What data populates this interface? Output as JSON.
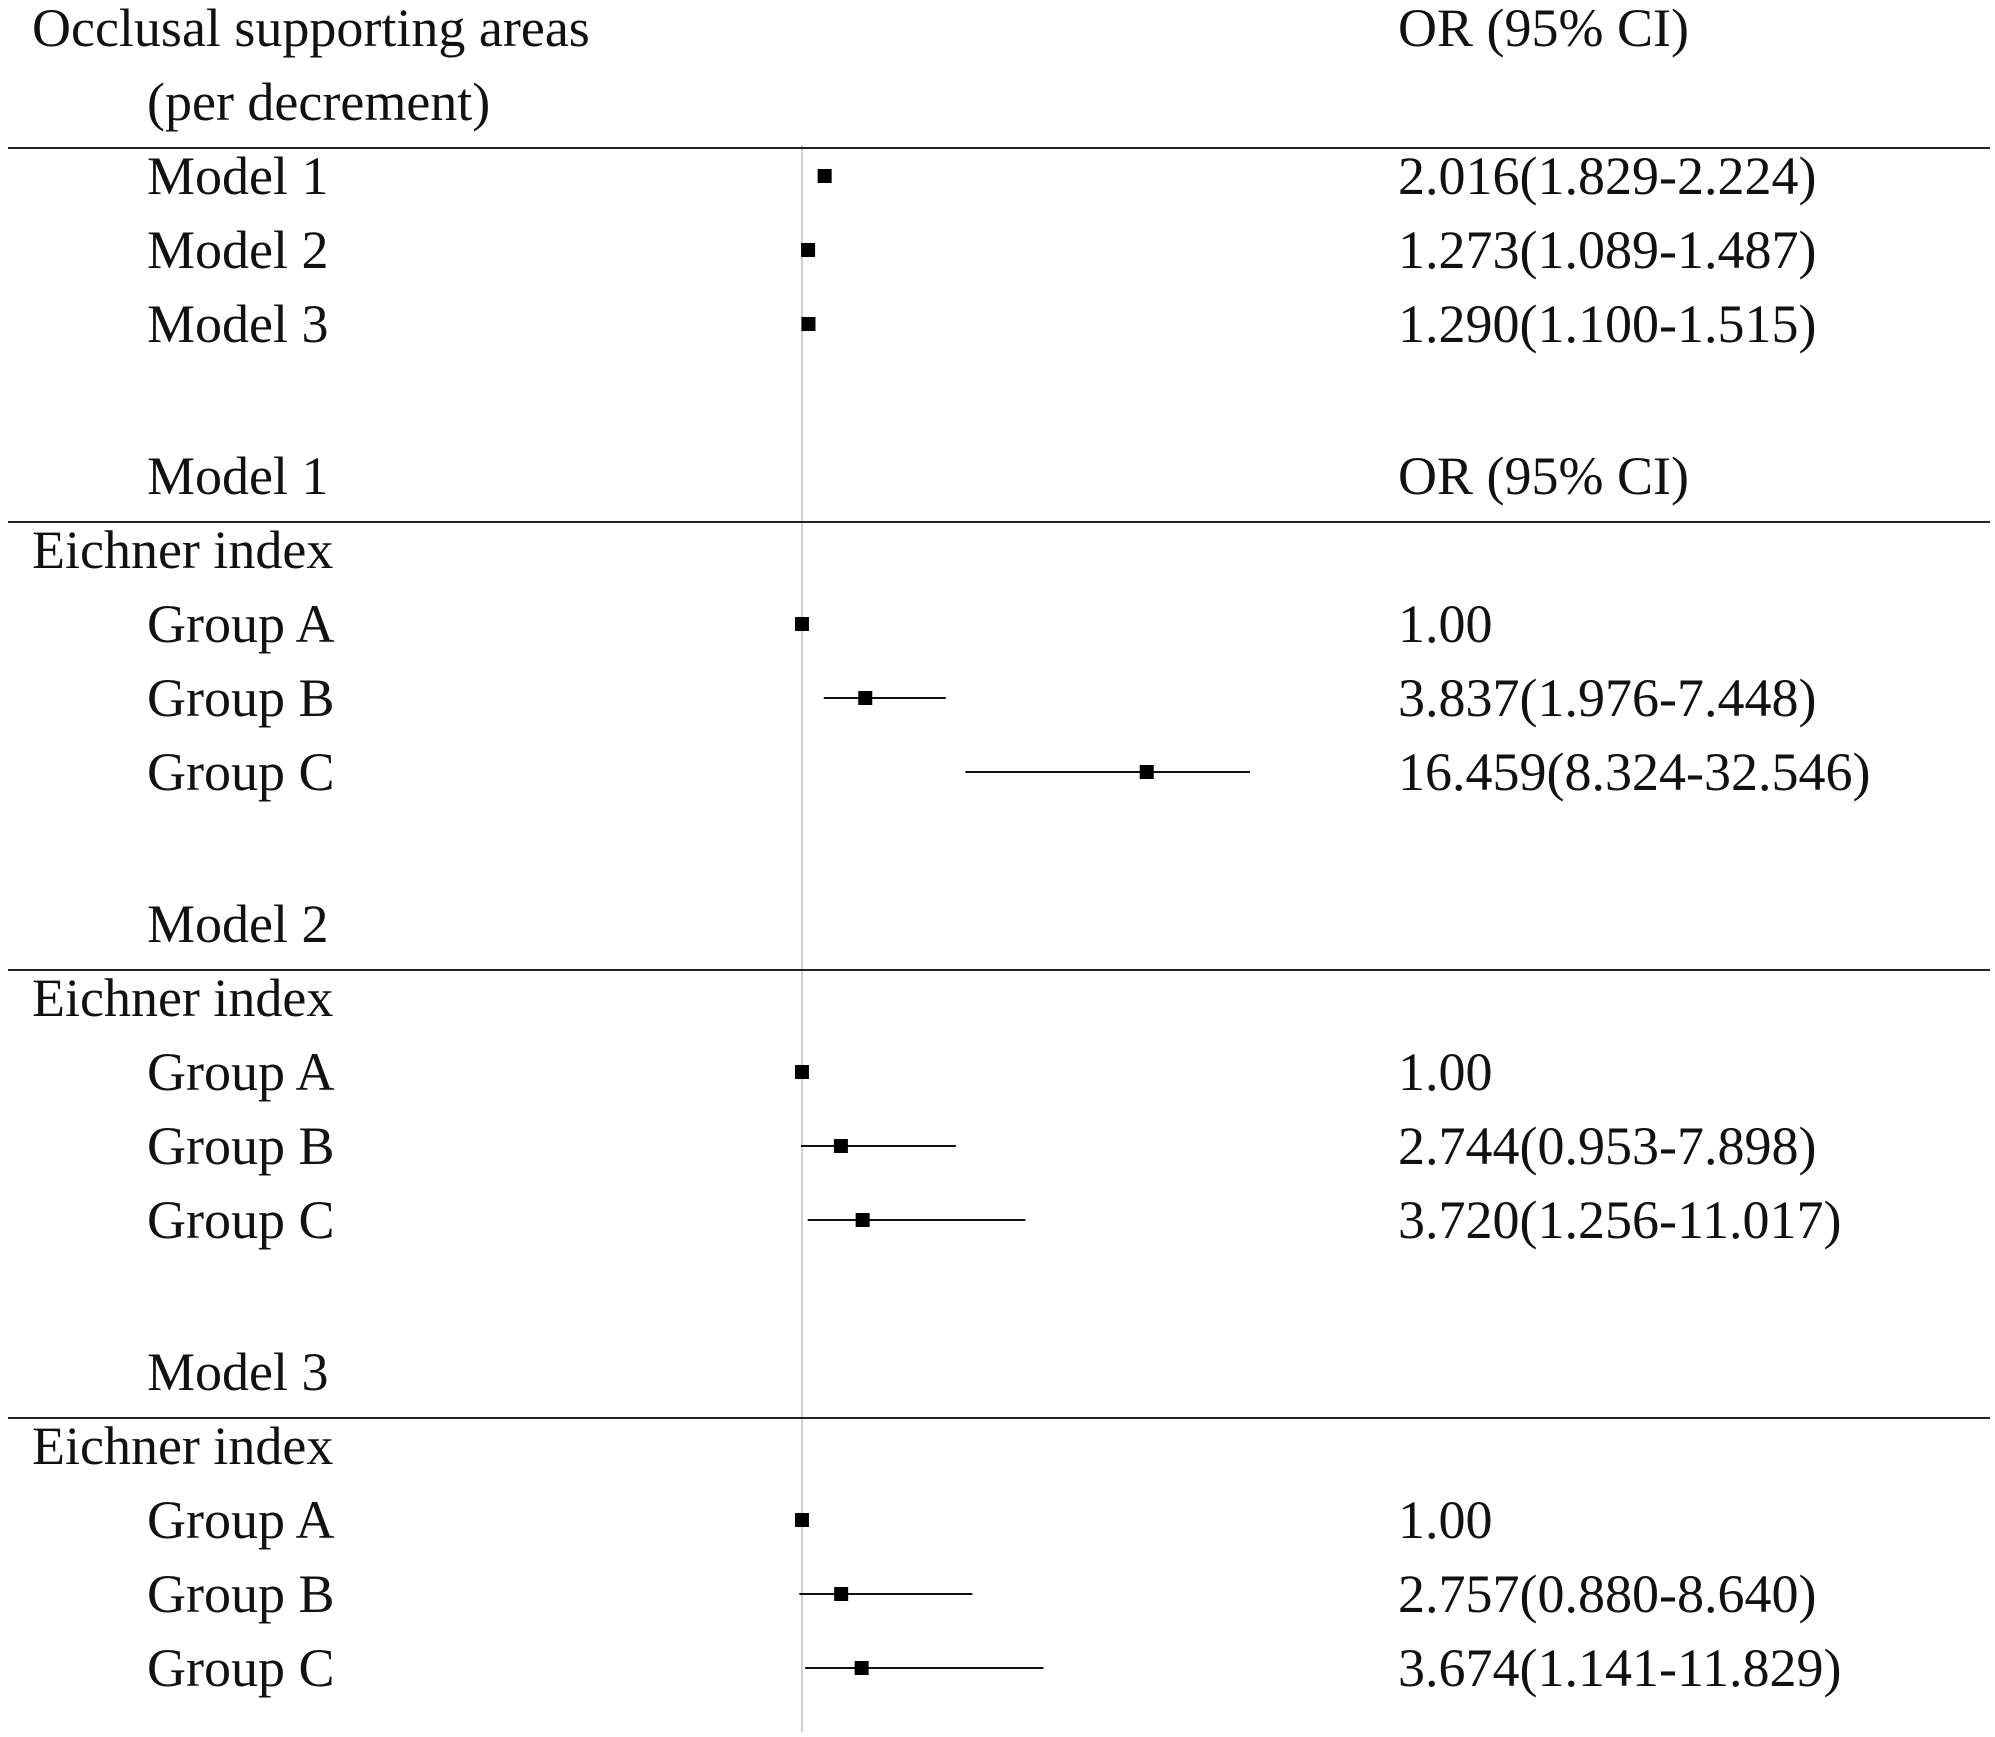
{
  "chart_data": {
    "type": "forest",
    "reference_line": 1,
    "sections": [
      {
        "title": [
          "Occlusal supporting areas",
          "(per decrement)"
        ],
        "header_right": "OR (95% CI)",
        "group_label": "",
        "rows": [
          {
            "label": "Model 1",
            "or": 2.016,
            "lo": 1.829,
            "hi": 2.224,
            "text": "2.016(1.829-2.224)"
          },
          {
            "label": "Model 2",
            "or": 1.273,
            "lo": 1.089,
            "hi": 1.487,
            "text": "1.273(1.089-1.487)"
          },
          {
            "label": "Model 3",
            "or": 1.29,
            "lo": 1.1,
            "hi": 1.515,
            "text": "1.290(1.100-1.515)"
          }
        ]
      },
      {
        "title": [
          "Model 1"
        ],
        "header_right": "OR (95% CI)",
        "group_label": "Eichner index",
        "rows": [
          {
            "label": "Group A",
            "or": 1.0,
            "lo": null,
            "hi": null,
            "text": "1.00"
          },
          {
            "label": "Group B",
            "or": 3.837,
            "lo": 1.976,
            "hi": 7.448,
            "text": "3.837(1.976-7.448)"
          },
          {
            "label": "Group C",
            "or": 16.459,
            "lo": 8.324,
            "hi": 32.546,
            "text": "16.459(8.324-32.546)"
          }
        ]
      },
      {
        "title": [
          "Model 2"
        ],
        "header_right": "",
        "group_label": "Eichner index",
        "rows": [
          {
            "label": "Group A",
            "or": 1.0,
            "lo": null,
            "hi": null,
            "text": "1.00"
          },
          {
            "label": "Group B",
            "or": 2.744,
            "lo": 0.953,
            "hi": 7.898,
            "text": "2.744(0.953-7.898)"
          },
          {
            "label": "Group C",
            "or": 3.72,
            "lo": 1.256,
            "hi": 11.017,
            "text": "3.720(1.256-11.017)"
          }
        ]
      },
      {
        "title": [
          "Model 3"
        ],
        "header_right": "",
        "group_label": "Eichner index",
        "rows": [
          {
            "label": "Group A",
            "or": 1.0,
            "lo": null,
            "hi": null,
            "text": "1.00"
          },
          {
            "label": "Group B",
            "or": 2.757,
            "lo": 0.88,
            "hi": 8.64,
            "text": "2.757(0.880-8.640)"
          },
          {
            "label": "Group C",
            "or": 3.674,
            "lo": 1.141,
            "hi": 11.829,
            "text": "3.674(1.141-11.829)"
          }
        ]
      }
    ],
    "grid": false
  }
}
